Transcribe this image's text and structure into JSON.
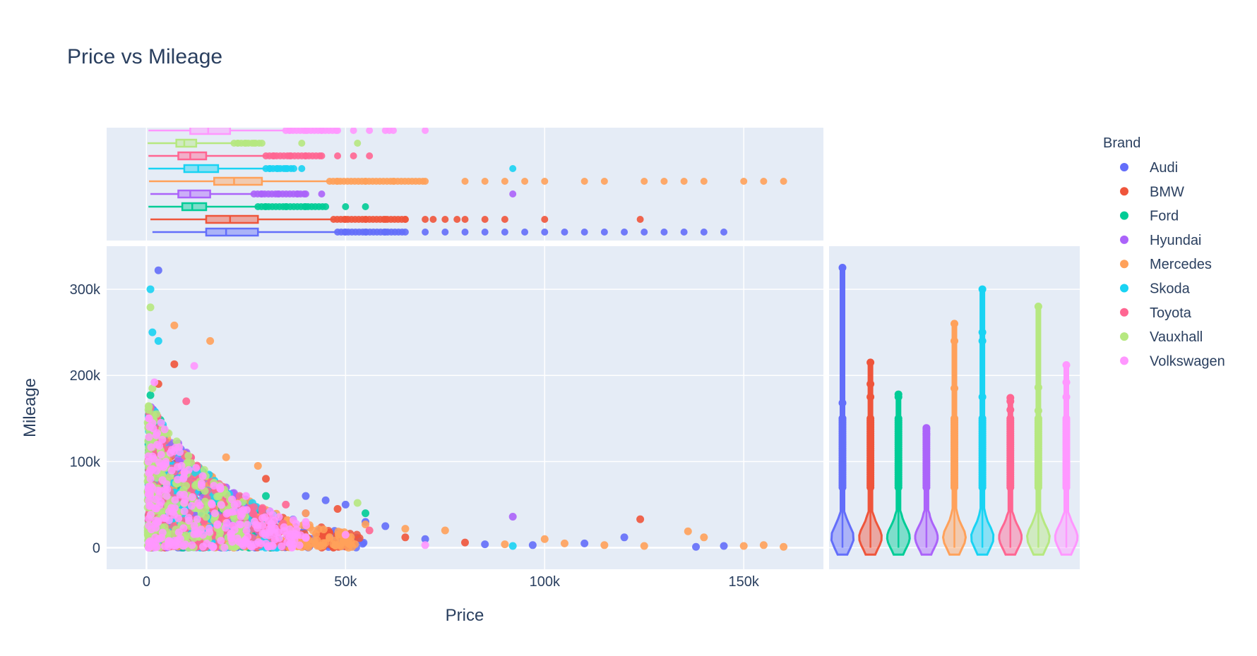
{
  "chart_data": {
    "type": "scatter",
    "title": "Price vs Mileage",
    "xlabel": "Price",
    "ylabel": "Mileage",
    "xlim": [
      -10000,
      170000
    ],
    "ylim": [
      -25000,
      350000
    ],
    "x_ticks": [
      0,
      50000,
      100000,
      150000
    ],
    "x_tick_labels": [
      "0",
      "50k",
      "100k",
      "150k"
    ],
    "y_ticks": [
      0,
      100000,
      200000,
      300000
    ],
    "y_tick_labels": [
      "0",
      "100k",
      "200k",
      "300k"
    ],
    "grid": true,
    "legend": {
      "title": "Brand",
      "placement": "right"
    },
    "marginal_x": "box",
    "marginal_y": "violin",
    "series": [
      {
        "name": "Audi",
        "color": "#636efa",
        "box": {
          "min": 1500,
          "q1": 15000,
          "median": 20000,
          "q3": 28000,
          "upper_fence": 48000,
          "outliers": [
            50000,
            55000,
            60000,
            65000,
            70000,
            75000,
            80000,
            85000,
            90000,
            95000,
            100000,
            105000,
            110000,
            115000,
            120000,
            125000,
            130000,
            135000,
            140000,
            145000
          ]
        },
        "violin": {
          "max": 325000,
          "top_points": [
            325000,
            168000,
            150000
          ]
        },
        "scatter_highlights": [
          [
            145000,
            2000
          ],
          [
            138000,
            1000
          ],
          [
            120000,
            12000
          ],
          [
            110000,
            5000
          ],
          [
            97000,
            3000
          ],
          [
            85000,
            4000
          ],
          [
            70000,
            10000
          ],
          [
            60000,
            25000
          ],
          [
            55000,
            30000
          ],
          [
            50000,
            50000
          ],
          [
            45000,
            55000
          ],
          [
            40000,
            60000
          ],
          [
            3000,
            322000
          ]
        ]
      },
      {
        "name": "BMW",
        "color": "#EF553B",
        "box": {
          "min": 1000,
          "q1": 15000,
          "median": 21000,
          "q3": 28000,
          "upper_fence": 47000,
          "outliers": [
            50000,
            55000,
            60000,
            65000,
            70000,
            72000,
            75000,
            78000,
            80000,
            85000,
            90000,
            100000,
            124000
          ]
        },
        "violin": {
          "max": 215000,
          "top_points": [
            215000,
            190000,
            175000
          ]
        },
        "scatter_highlights": [
          [
            124000,
            33000
          ],
          [
            80000,
            6000
          ],
          [
            65000,
            12000
          ],
          [
            48000,
            45000
          ],
          [
            30000,
            80000
          ],
          [
            7000,
            213000
          ],
          [
            3000,
            190000
          ]
        ]
      },
      {
        "name": "Ford",
        "color": "#00cc96",
        "box": {
          "min": 500,
          "q1": 9000,
          "median": 11500,
          "q3": 15000,
          "upper_fence": 28000,
          "outliers": [
            30000,
            35000,
            40000,
            45000,
            50000,
            55000
          ]
        },
        "violin": {
          "max": 178000,
          "top_points": [
            178000,
            175000
          ]
        },
        "scatter_highlights": [
          [
            55000,
            40000
          ],
          [
            30000,
            60000
          ],
          [
            1000,
            177000
          ],
          [
            500,
            120000
          ]
        ]
      },
      {
        "name": "Hyundai",
        "color": "#ab63fa",
        "box": {
          "min": 1000,
          "q1": 8000,
          "median": 11000,
          "q3": 16000,
          "upper_fence": 27000,
          "outliers": [
            29000,
            33000,
            38000,
            40000,
            44000,
            92000
          ]
        },
        "violin": {
          "max": 139000,
          "top_points": [
            139000,
            132000
          ]
        },
        "scatter_highlights": [
          [
            92000,
            36000
          ],
          [
            40000,
            40000
          ],
          [
            20000,
            70000
          ]
        ]
      },
      {
        "name": "Mercedes",
        "color": "#FFA15A",
        "box": {
          "min": 650,
          "q1": 17000,
          "median": 22000,
          "q3": 29000,
          "upper_fence": 46000,
          "outliers": [
            48000,
            55000,
            62000,
            70000,
            80000,
            85000,
            90000,
            95000,
            100000,
            110000,
            115000,
            125000,
            130000,
            135000,
            140000,
            150000,
            155000,
            160000
          ]
        },
        "violin": {
          "max": 260000,
          "top_points": [
            260000,
            240000,
            185000
          ]
        },
        "scatter_highlights": [
          [
            160000,
            1000
          ],
          [
            155000,
            3000
          ],
          [
            150000,
            2000
          ],
          [
            140000,
            12000
          ],
          [
            136000,
            19000
          ],
          [
            125000,
            2000
          ],
          [
            115000,
            3000
          ],
          [
            105000,
            5000
          ],
          [
            100000,
            10000
          ],
          [
            90000,
            4000
          ],
          [
            75000,
            20000
          ],
          [
            65000,
            22000
          ],
          [
            55000,
            27000
          ],
          [
            40000,
            40000
          ],
          [
            28000,
            95000
          ],
          [
            20000,
            105000
          ],
          [
            16000,
            240000
          ],
          [
            7000,
            258000
          ]
        ]
      },
      {
        "name": "Skoda",
        "color": "#19d3f3",
        "box": {
          "min": 500,
          "q1": 9500,
          "median": 13000,
          "q3": 18000,
          "upper_fence": 30000,
          "outliers": [
            31000,
            33000,
            35000,
            37000,
            39000,
            92000
          ]
        },
        "violin": {
          "max": 300000,
          "top_points": [
            300000,
            250000,
            240000,
            175000
          ]
        },
        "scatter_highlights": [
          [
            92000,
            2000
          ],
          [
            3000,
            240000
          ],
          [
            1500,
            250000
          ],
          [
            1000,
            300000
          ]
        ]
      },
      {
        "name": "Toyota",
        "color": "#FF6692",
        "box": {
          "min": 500,
          "q1": 8000,
          "median": 11000,
          "q3": 15000,
          "upper_fence": 30000,
          "outliers": [
            32000,
            36000,
            40000,
            44000,
            48000,
            52000,
            56000
          ]
        },
        "violin": {
          "max": 174000,
          "top_points": [
            174000,
            170000,
            160000
          ]
        },
        "scatter_highlights": [
          [
            56000,
            20000
          ],
          [
            35000,
            50000
          ],
          [
            10000,
            170000
          ]
        ]
      },
      {
        "name": "Vauxhall",
        "color": "#B6E880",
        "box": {
          "min": 300,
          "q1": 7500,
          "median": 9500,
          "q3": 12500,
          "upper_fence": 22000,
          "outliers": [
            23000,
            25000,
            27000,
            29000,
            39000,
            53000
          ]
        },
        "violin": {
          "max": 280000,
          "top_points": [
            280000,
            186000,
            159000
          ]
        },
        "scatter_highlights": [
          [
            53000,
            52000
          ],
          [
            1000,
            279000
          ],
          [
            1500,
            185000
          ],
          [
            500,
            160000
          ]
        ]
      },
      {
        "name": "Volkswagen",
        "color": "#FF97FF",
        "box": {
          "min": 500,
          "q1": 11000,
          "median": 15500,
          "q3": 21000,
          "upper_fence": 35000,
          "outliers": [
            36000,
            40000,
            44000,
            48000,
            52000,
            56000,
            60000,
            61000,
            62000,
            70000
          ]
        },
        "violin": {
          "max": 212000,
          "top_points": [
            212000,
            192000,
            175000
          ]
        },
        "scatter_highlights": [
          [
            70000,
            3000
          ],
          [
            50000,
            15000
          ],
          [
            40000,
            30000
          ],
          [
            25000,
            60000
          ],
          [
            12000,
            211000
          ],
          [
            2000,
            192000
          ]
        ]
      }
    ]
  }
}
